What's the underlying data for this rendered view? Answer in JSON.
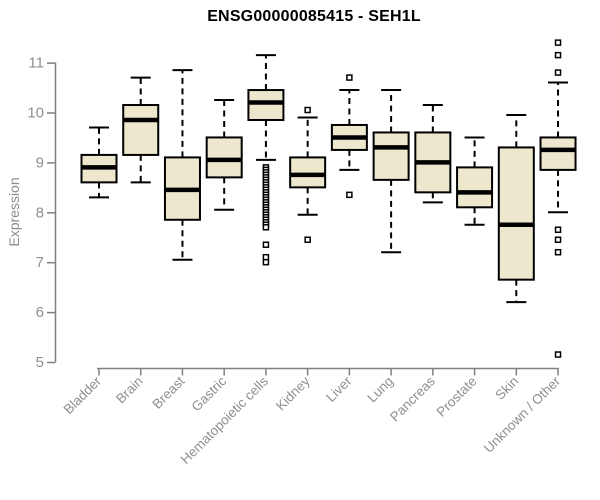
{
  "chart_data": {
    "type": "boxplot",
    "title": "ENSG00000085415 - SEH1L",
    "ylabel": "Expression",
    "ylim": [
      5,
      11.5
    ],
    "yticks": [
      5,
      6,
      7,
      8,
      9,
      10,
      11
    ],
    "grid": "off",
    "box_fill": "#EDE7CE",
    "box_border": "#000000",
    "median_color": "#000000",
    "axis_color": "#808080",
    "tick_label_color": "#8f8f8f",
    "title_color": "#000000",
    "categories": [
      "Bladder",
      "Brain",
      "Breast",
      "Gastric",
      "Hematopoietic cells",
      "Kidney",
      "Liver",
      "Lung",
      "Pancreas",
      "Prostate",
      "Skin",
      "Unknown / Other"
    ],
    "boxes": [
      {
        "category": "Bladder",
        "low": 8.3,
        "q1": 8.6,
        "median": 8.9,
        "q3": 9.15,
        "high": 9.7,
        "outliers": []
      },
      {
        "category": "Brain",
        "low": 8.6,
        "q1": 9.15,
        "median": 9.85,
        "q3": 10.15,
        "high": 10.7,
        "outliers": []
      },
      {
        "category": "Breast",
        "low": 7.05,
        "q1": 7.85,
        "median": 8.45,
        "q3": 9.1,
        "high": 10.85,
        "outliers": []
      },
      {
        "category": "Gastric",
        "low": 8.05,
        "q1": 8.7,
        "median": 9.05,
        "q3": 9.5,
        "high": 10.25,
        "outliers": []
      },
      {
        "category": "Hematopoietic cells",
        "low": 9.05,
        "q1": 9.85,
        "median": 10.2,
        "q3": 10.45,
        "high": 11.15,
        "outliers": [
          8.9,
          8.85,
          8.8,
          8.75,
          8.7,
          8.65,
          8.6,
          8.55,
          8.5,
          8.45,
          8.4,
          8.35,
          8.3,
          8.25,
          8.2,
          8.15,
          8.1,
          8.05,
          8.0,
          7.95,
          7.9,
          7.85,
          7.8,
          7.75,
          7.7,
          7.35,
          7.1,
          7.0
        ]
      },
      {
        "category": "Kidney",
        "low": 7.95,
        "q1": 8.5,
        "median": 8.75,
        "q3": 9.1,
        "high": 9.9,
        "outliers": [
          10.05,
          7.45
        ]
      },
      {
        "category": "Liver",
        "low": 8.85,
        "q1": 9.25,
        "median": 9.5,
        "q3": 9.75,
        "high": 10.45,
        "outliers": [
          10.7,
          8.35
        ]
      },
      {
        "category": "Lung",
        "low": 7.2,
        "q1": 8.65,
        "median": 9.3,
        "q3": 9.6,
        "high": 10.45,
        "outliers": []
      },
      {
        "category": "Pancreas",
        "low": 8.2,
        "q1": 8.4,
        "median": 9.0,
        "q3": 9.6,
        "high": 10.15,
        "outliers": []
      },
      {
        "category": "Prostate",
        "low": 7.75,
        "q1": 8.1,
        "median": 8.4,
        "q3": 8.9,
        "high": 9.5,
        "outliers": []
      },
      {
        "category": "Skin",
        "low": 6.2,
        "q1": 6.65,
        "median": 7.75,
        "q3": 9.3,
        "high": 9.95,
        "outliers": []
      },
      {
        "category": "Unknown / Other",
        "low": 8.0,
        "q1": 8.85,
        "median": 9.25,
        "q3": 9.5,
        "high": 10.6,
        "outliers": [
          11.4,
          11.15,
          10.8,
          7.65,
          7.45,
          7.2,
          5.15
        ]
      }
    ]
  }
}
